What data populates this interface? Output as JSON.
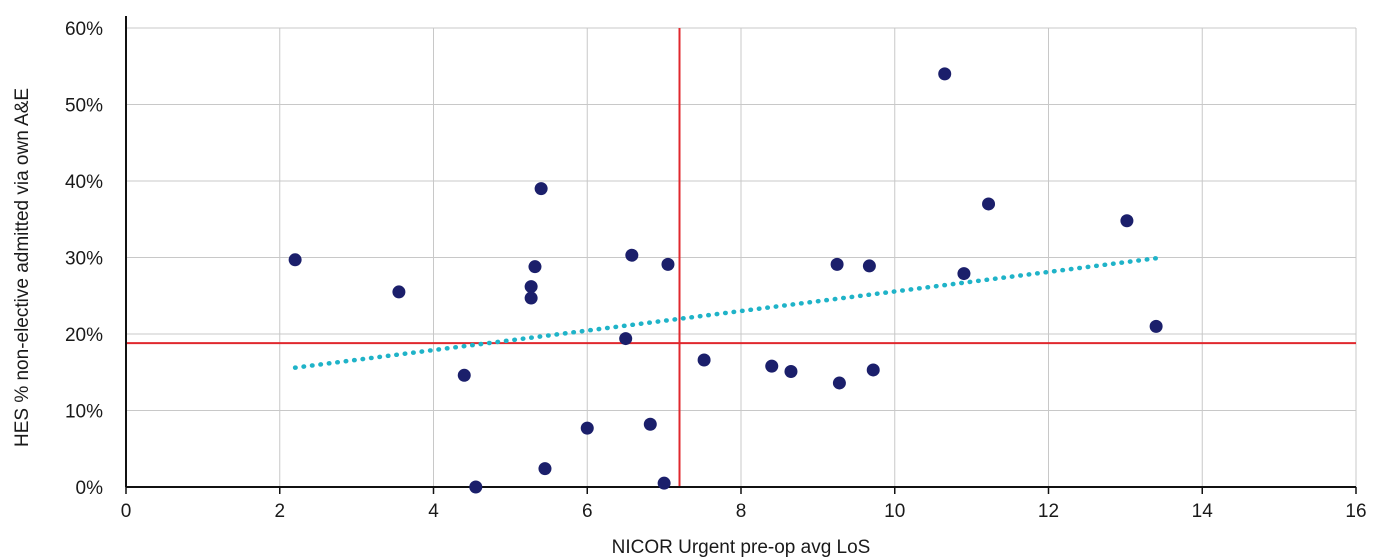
{
  "chart_data": {
    "type": "scatter",
    "title": "",
    "xlabel": "NICOR Urgent pre-op avg LoS",
    "ylabel": "HES % non-elective admitted via own A&E",
    "xlim": [
      0,
      16
    ],
    "ylim": [
      0,
      60
    ],
    "x_ticks": [
      0,
      2,
      4,
      6,
      8,
      10,
      12,
      14,
      16
    ],
    "y_ticks": [
      0,
      10,
      20,
      30,
      40,
      50,
      60
    ],
    "x_tick_labels": [
      "0",
      "2",
      "4",
      "6",
      "8",
      "10",
      "12",
      "14",
      "16"
    ],
    "y_tick_labels": [
      "0%",
      "10%",
      "20%",
      "30%",
      "40%",
      "50%",
      "60%"
    ],
    "grid": true,
    "legend": "none",
    "colors": {
      "points": "#1b1f6b",
      "trendline": "#1fb3c8",
      "reference_lines": "#e0282e",
      "grid": "#c8c8c8",
      "axis": "#111111"
    },
    "series": [
      {
        "points": [
          {
            "x": 2.2,
            "y": 29.7
          },
          {
            "x": 3.55,
            "y": 25.5
          },
          {
            "x": 4.4,
            "y": 14.6
          },
          {
            "x": 4.55,
            "y": 0
          },
          {
            "x": 5.27,
            "y": 26.2
          },
          {
            "x": 5.27,
            "y": 24.7
          },
          {
            "x": 5.32,
            "y": 28.8
          },
          {
            "x": 5.4,
            "y": 39.0
          },
          {
            "x": 5.45,
            "y": 2.4
          },
          {
            "x": 6.0,
            "y": 7.7
          },
          {
            "x": 6.5,
            "y": 19.4
          },
          {
            "x": 6.58,
            "y": 30.3
          },
          {
            "x": 6.82,
            "y": 8.2
          },
          {
            "x": 7.0,
            "y": 0.5
          },
          {
            "x": 7.05,
            "y": 29.1
          },
          {
            "x": 7.52,
            "y": 16.6
          },
          {
            "x": 8.4,
            "y": 15.8
          },
          {
            "x": 8.65,
            "y": 15.1
          },
          {
            "x": 9.25,
            "y": 29.1
          },
          {
            "x": 9.28,
            "y": 13.6
          },
          {
            "x": 9.67,
            "y": 28.9
          },
          {
            "x": 9.72,
            "y": 15.3
          },
          {
            "x": 10.65,
            "y": 54.0
          },
          {
            "x": 10.9,
            "y": 27.9
          },
          {
            "x": 11.22,
            "y": 37.0
          },
          {
            "x": 13.02,
            "y": 34.8
          },
          {
            "x": 13.4,
            "y": 21.0
          }
        ]
      }
    ],
    "trendline": {
      "style": "dotted",
      "x": [
        2.2,
        13.4
      ],
      "y": [
        15.6,
        29.9
      ]
    },
    "reference_lines": {
      "x": 7.2,
      "y": 18.8
    }
  }
}
